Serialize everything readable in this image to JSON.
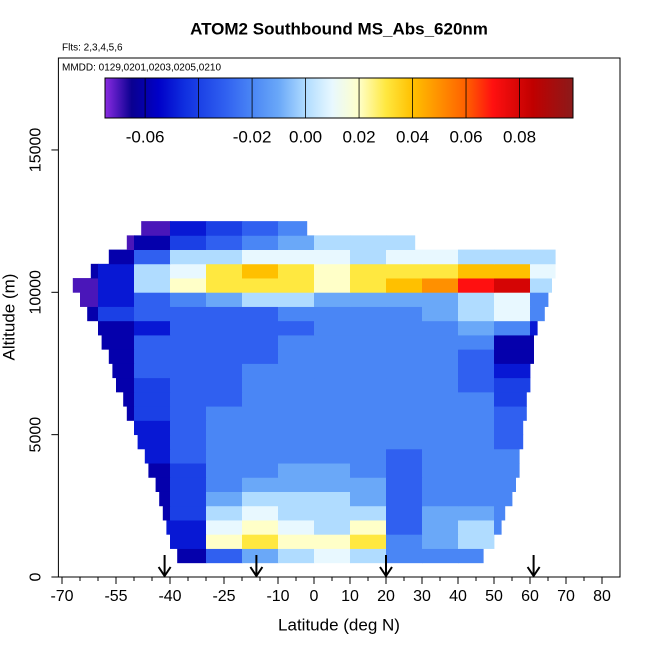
{
  "chart_data": {
    "type": "heatmap",
    "title": "ATOM2 Southbound MS_Abs_620nm",
    "annotations": [
      "Flts: 2,3,4,5,6",
      "MMDD: 0129,0201,0203,0205,0210"
    ],
    "xlabel": "Latitude (deg N)",
    "ylabel": "Altitude (m)",
    "xlim": [
      -71,
      85
    ],
    "xticks": [
      -70,
      -55,
      -40,
      -25,
      -10,
      0,
      10,
      20,
      30,
      40,
      50,
      60,
      70,
      80
    ],
    "xminorticks": [
      -65,
      -60,
      -50,
      -45,
      -35,
      -30,
      -20,
      -15,
      -5,
      5,
      15,
      25,
      35,
      45,
      55,
      65,
      75
    ],
    "ylim": [
      0,
      18230
    ],
    "yticks": [
      0,
      5000,
      10000,
      15000
    ],
    "arrows": [
      -41.5,
      -16,
      20,
      61
    ],
    "colorbar": {
      "lim": [
        -0.075,
        0.1
      ],
      "ticks": [
        -0.06,
        -0.02,
        {
          "value": 0,
          "label": "0.00"
        },
        0.02,
        0.04,
        0.06,
        0.08
      ],
      "breaks": [
        -0.06,
        -0.04,
        -0.02,
        0,
        0.02,
        0.04,
        0.06,
        0.08
      ]
    },
    "colorscale": [
      [
        -0.075,
        "#8a2be2"
      ],
      [
        -0.065,
        "#0a0090"
      ],
      [
        -0.055,
        "#0000c8"
      ],
      [
        -0.045,
        "#1030e0"
      ],
      [
        -0.03,
        "#3060f0"
      ],
      [
        -0.02,
        "#4a86f5"
      ],
      [
        -0.01,
        "#6aa8f8"
      ],
      [
        0,
        "#b0dcff"
      ],
      [
        0.01,
        "#e8f8ff"
      ],
      [
        0.02,
        "#ffffc8"
      ],
      [
        0.03,
        "#ffe840"
      ],
      [
        0.04,
        "#ffc000"
      ],
      [
        0.05,
        "#ff9000"
      ],
      [
        0.06,
        "#ff6000"
      ],
      [
        0.07,
        "#ff1010"
      ],
      [
        0.085,
        "#c00000"
      ],
      [
        0.1,
        "#8b1a1a"
      ]
    ],
    "altitude_bins": [
      500,
      1000,
      1500,
      2000,
      2500,
      3000,
      3500,
      4000,
      4500,
      5000,
      5500,
      6000,
      6500,
      7000,
      7500,
      8000,
      8500,
      9000,
      9500,
      10000,
      10500,
      11000,
      11500,
      12000,
      12500
    ],
    "rows": [
      {
        "bins": [
          -38,
          -30,
          -20,
          -10,
          0,
          10,
          20,
          30,
          40,
          47
        ],
        "values": [
          -0.06,
          -0.03,
          -0.01,
          0.0,
          0.01,
          0.0,
          -0.02,
          -0.02,
          -0.02
        ]
      },
      {
        "bins": [
          -40,
          -30,
          -20,
          -10,
          0,
          10,
          20,
          30,
          40,
          50
        ],
        "values": [
          -0.05,
          0.02,
          0.03,
          0.02,
          0.02,
          0.03,
          -0.02,
          -0.01,
          0.0
        ]
      },
      {
        "bins": [
          -41,
          -30,
          -20,
          -10,
          0,
          10,
          20,
          30,
          40,
          50,
          52
        ],
        "values": [
          -0.05,
          0.01,
          0.02,
          0.01,
          0.0,
          0.02,
          -0.03,
          -0.01,
          0.0,
          -0.02
        ]
      },
      {
        "bins": [
          -42,
          -40,
          -30,
          -20,
          -10,
          0,
          10,
          20,
          30,
          40,
          50,
          53
        ],
        "values": [
          -0.06,
          -0.04,
          0.0,
          0.01,
          0.0,
          0.0,
          0.0,
          -0.03,
          -0.01,
          -0.01,
          -0.02
        ]
      },
      {
        "bins": [
          -43,
          -40,
          -30,
          -20,
          -10,
          0,
          10,
          20,
          30,
          40,
          50,
          55
        ],
        "values": [
          -0.06,
          -0.04,
          -0.01,
          0.0,
          0.0,
          0.0,
          -0.01,
          -0.03,
          -0.02,
          -0.02,
          -0.02
        ]
      },
      {
        "bins": [
          -44,
          -40,
          -30,
          -20,
          -10,
          0,
          10,
          20,
          30,
          40,
          50,
          56
        ],
        "values": [
          -0.06,
          -0.04,
          -0.02,
          -0.01,
          -0.01,
          -0.01,
          -0.01,
          -0.03,
          -0.02,
          -0.02,
          -0.02
        ]
      },
      {
        "bins": [
          -46,
          -40,
          -30,
          -20,
          -10,
          0,
          10,
          20,
          30,
          40,
          50,
          57
        ],
        "values": [
          -0.06,
          -0.04,
          -0.02,
          -0.02,
          -0.01,
          -0.01,
          -0.02,
          -0.03,
          -0.02,
          -0.02,
          -0.02
        ]
      },
      {
        "bins": [
          -47,
          -40,
          -30,
          -20,
          -10,
          0,
          10,
          20,
          30,
          40,
          50,
          57
        ],
        "values": [
          -0.05,
          -0.03,
          -0.02,
          -0.02,
          -0.02,
          -0.02,
          -0.02,
          -0.03,
          -0.02,
          -0.02,
          -0.02
        ]
      },
      {
        "bins": [
          -49,
          -40,
          -30,
          -20,
          -10,
          0,
          10,
          20,
          30,
          40,
          50,
          58
        ],
        "values": [
          -0.05,
          -0.03,
          -0.02,
          -0.02,
          -0.02,
          -0.02,
          -0.02,
          -0.02,
          -0.02,
          -0.02,
          -0.03
        ]
      },
      {
        "bins": [
          -50,
          -40,
          -30,
          -20,
          -10,
          0,
          10,
          20,
          30,
          40,
          50,
          58
        ],
        "values": [
          -0.05,
          -0.03,
          -0.02,
          -0.02,
          -0.02,
          -0.02,
          -0.02,
          -0.02,
          -0.02,
          -0.02,
          -0.03
        ]
      },
      {
        "bins": [
          -52,
          -50,
          -40,
          -30,
          -20,
          -10,
          0,
          10,
          20,
          30,
          40,
          50,
          59
        ],
        "values": [
          -0.06,
          -0.04,
          -0.03,
          -0.02,
          -0.02,
          -0.02,
          -0.02,
          -0.02,
          -0.02,
          -0.02,
          -0.02,
          -0.03
        ]
      },
      {
        "bins": [
          -53,
          -50,
          -40,
          -30,
          -20,
          -10,
          0,
          10,
          20,
          30,
          40,
          50,
          59
        ],
        "values": [
          -0.06,
          -0.04,
          -0.03,
          -0.03,
          -0.02,
          -0.02,
          -0.02,
          -0.02,
          -0.02,
          -0.02,
          -0.02,
          -0.04
        ]
      },
      {
        "bins": [
          -55,
          -50,
          -40,
          -30,
          -20,
          -10,
          0,
          10,
          20,
          30,
          40,
          50,
          60
        ],
        "values": [
          -0.06,
          -0.04,
          -0.03,
          -0.03,
          -0.02,
          -0.02,
          -0.02,
          -0.02,
          -0.02,
          -0.02,
          -0.03,
          -0.04
        ]
      },
      {
        "bins": [
          -56,
          -50,
          -40,
          -30,
          -20,
          -10,
          0,
          10,
          20,
          30,
          40,
          50,
          60
        ],
        "values": [
          -0.06,
          -0.03,
          -0.03,
          -0.03,
          -0.02,
          -0.02,
          -0.02,
          -0.02,
          -0.02,
          -0.02,
          -0.03,
          -0.05
        ]
      },
      {
        "bins": [
          -57,
          -50,
          -40,
          -30,
          -20,
          -10,
          0,
          10,
          20,
          30,
          40,
          50,
          61
        ],
        "values": [
          -0.06,
          -0.03,
          -0.03,
          -0.03,
          -0.03,
          -0.02,
          -0.02,
          -0.02,
          -0.02,
          -0.02,
          -0.03,
          -0.06
        ]
      },
      {
        "bins": [
          -59,
          -50,
          -40,
          -30,
          -20,
          -10,
          0,
          10,
          20,
          30,
          40,
          50,
          61
        ],
        "values": [
          -0.06,
          -0.03,
          -0.03,
          -0.03,
          -0.03,
          -0.02,
          -0.02,
          -0.02,
          -0.02,
          -0.02,
          -0.02,
          -0.06
        ]
      },
      {
        "bins": [
          -60,
          -50,
          -40,
          -30,
          -20,
          -10,
          0,
          10,
          20,
          30,
          40,
          50,
          60,
          62
        ],
        "values": [
          -0.06,
          -0.05,
          -0.03,
          -0.03,
          -0.03,
          -0.03,
          -0.02,
          -0.02,
          -0.02,
          -0.02,
          -0.01,
          -0.02,
          -0.05
        ]
      },
      {
        "bins": [
          -63,
          -60,
          -50,
          -40,
          -30,
          -20,
          -10,
          0,
          10,
          20,
          30,
          40,
          50,
          60,
          64
        ],
        "values": [
          -0.06,
          -0.04,
          -0.03,
          -0.03,
          -0.03,
          -0.03,
          -0.02,
          -0.02,
          -0.02,
          -0.02,
          -0.01,
          0.0,
          0.01,
          -0.02
        ]
      },
      {
        "bins": [
          -65,
          -60,
          -50,
          -40,
          -30,
          -20,
          -10,
          0,
          10,
          20,
          30,
          40,
          50,
          60,
          65
        ],
        "values": [
          -0.07,
          -0.05,
          -0.03,
          -0.02,
          -0.01,
          0.0,
          0.0,
          -0.01,
          -0.01,
          -0.01,
          -0.01,
          0.0,
          0.01,
          -0.02
        ]
      },
      {
        "bins": [
          -67,
          -60,
          -50,
          -40,
          -30,
          -20,
          -10,
          0,
          10,
          20,
          30,
          40,
          50,
          60,
          66
        ],
        "values": [
          -0.07,
          -0.05,
          0.0,
          0.02,
          0.03,
          0.03,
          0.03,
          0.02,
          0.03,
          0.04,
          0.05,
          0.07,
          0.08,
          0.0
        ]
      },
      {
        "bins": [
          -62,
          -60,
          -50,
          -40,
          -30,
          -20,
          -10,
          0,
          10,
          20,
          30,
          40,
          50,
          60,
          67
        ],
        "values": [
          -0.06,
          -0.05,
          0.0,
          0.01,
          0.03,
          0.04,
          0.03,
          0.02,
          0.03,
          0.03,
          0.03,
          0.04,
          0.04,
          0.01
        ]
      },
      {
        "bins": [
          -57,
          -50,
          -40,
          -30,
          -20,
          -10,
          0,
          10,
          20,
          30,
          40,
          50,
          60,
          67
        ],
        "values": [
          -0.06,
          -0.03,
          0.0,
          0.0,
          0.01,
          0.01,
          0.01,
          0.0,
          0.01,
          0.01,
          0.0,
          0.0,
          0.0
        ]
      },
      {
        "bins": [
          -52,
          -50,
          -40,
          -30,
          -20,
          -10,
          0,
          10,
          20,
          28
        ],
        "values": [
          -0.07,
          -0.06,
          -0.04,
          -0.03,
          -0.02,
          -0.01,
          0.0,
          0.0,
          0.0
        ]
      },
      {
        "bins": [
          -48,
          -40,
          -30,
          -20,
          -10,
          -2
        ],
        "values": [
          -0.07,
          -0.05,
          -0.04,
          -0.03,
          -0.02
        ]
      }
    ]
  }
}
